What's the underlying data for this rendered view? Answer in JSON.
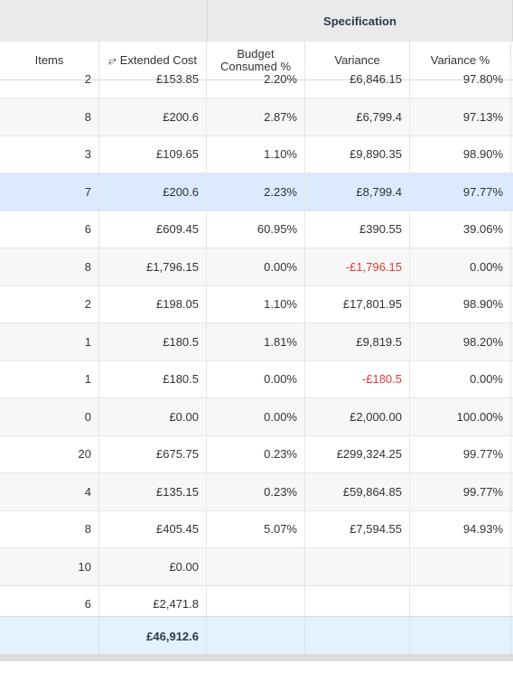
{
  "group_header": {
    "spec_label": "Specification"
  },
  "columns": {
    "items": "Items",
    "extended_cost": "Extended Cost",
    "budget_consumed_line1": "Budget",
    "budget_consumed_line2": "Consumed %",
    "variance": "Variance",
    "variance_pct": "Variance %"
  },
  "sort_icon_glyph": "⥂",
  "rows": [
    {
      "items": "2",
      "cost": "£153.85",
      "budget": "2.20%",
      "variance": "£6,846.15",
      "variance_pct": "97.80%",
      "neg": false
    },
    {
      "items": "8",
      "cost": "£200.6",
      "budget": "2.87%",
      "variance": "£6,799.4",
      "variance_pct": "97.13%",
      "neg": false
    },
    {
      "items": "3",
      "cost": "£109.65",
      "budget": "1.10%",
      "variance": "£9,890.35",
      "variance_pct": "98.90%",
      "neg": false
    },
    {
      "items": "7",
      "cost": "£200.6",
      "budget": "2.23%",
      "variance": "£8,799.4",
      "variance_pct": "97.77%",
      "neg": false
    },
    {
      "items": "6",
      "cost": "£609.45",
      "budget": "60.95%",
      "variance": "£390.55",
      "variance_pct": "39.06%",
      "neg": false
    },
    {
      "items": "8",
      "cost": "£1,796.15",
      "budget": "0.00%",
      "variance": "-£1,796.15",
      "variance_pct": "0.00%",
      "neg": true
    },
    {
      "items": "2",
      "cost": "£198.05",
      "budget": "1.10%",
      "variance": "£17,801.95",
      "variance_pct": "98.90%",
      "neg": false
    },
    {
      "items": "1",
      "cost": "£180.5",
      "budget": "1.81%",
      "variance": "£9,819.5",
      "variance_pct": "98.20%",
      "neg": false
    },
    {
      "items": "1",
      "cost": "£180.5",
      "budget": "0.00%",
      "variance": "-£180.5",
      "variance_pct": "0.00%",
      "neg": true
    },
    {
      "items": "0",
      "cost": "£0.00",
      "budget": "0.00%",
      "variance": "£2,000.00",
      "variance_pct": "100.00%",
      "neg": false
    },
    {
      "items": "20",
      "cost": "£675.75",
      "budget": "0.23%",
      "variance": "£299,324.25",
      "variance_pct": "99.77%",
      "neg": false
    },
    {
      "items": "4",
      "cost": "£135.15",
      "budget": "0.23%",
      "variance": "£59,864.85",
      "variance_pct": "99.77%",
      "neg": false
    },
    {
      "items": "8",
      "cost": "£405.45",
      "budget": "5.07%",
      "variance": "£7,594.55",
      "variance_pct": "94.93%",
      "neg": false
    },
    {
      "items": "10",
      "cost": "£0.00",
      "budget": "",
      "variance": "",
      "variance_pct": "",
      "neg": false
    },
    {
      "items": "6",
      "cost": "£2,471.8",
      "budget": "",
      "variance": "",
      "variance_pct": "",
      "neg": false
    }
  ],
  "selected_row": 3,
  "footer": {
    "total_cost": "£46,912.6"
  },
  "colors": {
    "selected": "#dbeafe",
    "footer": "#e3f2fd",
    "negative": "#e53935"
  }
}
